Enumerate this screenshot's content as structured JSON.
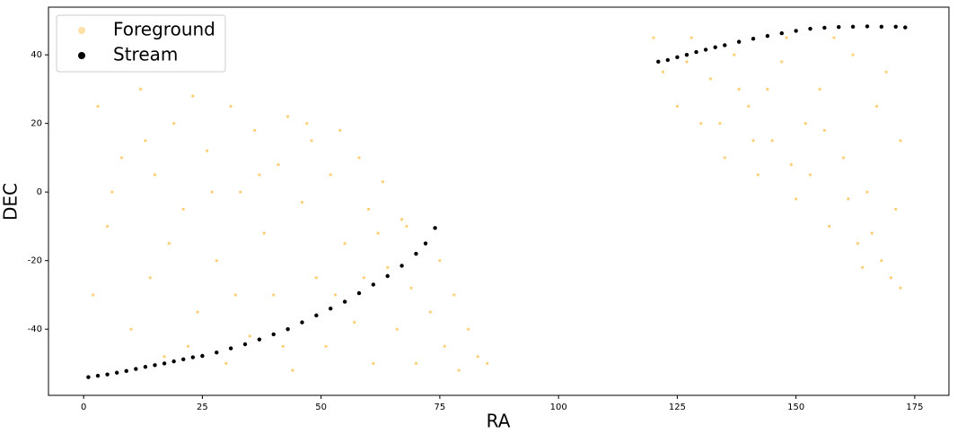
{
  "chart_data": {
    "type": "scatter",
    "x_label": "RA",
    "y_label": "DEC",
    "xlim": [
      -7.4,
      182.2
    ],
    "ylim": [
      -59.3,
      53.9
    ],
    "xticks": [
      0,
      25,
      50,
      75,
      100,
      125,
      150,
      175
    ],
    "yticks": [
      -40,
      -20,
      0,
      20,
      40
    ],
    "legend": "upper left",
    "grid": false,
    "series": [
      {
        "name": "Foreground",
        "color": "#ffa500",
        "x": [
          3,
          5,
          8,
          10,
          12,
          14,
          15,
          17,
          19,
          21,
          23,
          24,
          26,
          28,
          30,
          31,
          33,
          35,
          36,
          38,
          40,
          41,
          43,
          44,
          46,
          48,
          49,
          51,
          52,
          54,
          55,
          57,
          58,
          60,
          61,
          63,
          64,
          66,
          67,
          69,
          70,
          72,
          73,
          75,
          76,
          78,
          79,
          81,
          83,
          85,
          2,
          6,
          9,
          13,
          18,
          22,
          27,
          32,
          37,
          42,
          47,
          53,
          59,
          62,
          68,
          120,
          122,
          125,
          128,
          130,
          132,
          135,
          137,
          140,
          142,
          145,
          147,
          150,
          152,
          155,
          157,
          160,
          162,
          163,
          165,
          167,
          168,
          170,
          172,
          171,
          158,
          148,
          138,
          127,
          144,
          153,
          166,
          169,
          161,
          156,
          134,
          141,
          149,
          164,
          172
        ],
        "values": [
          25,
          -10,
          10,
          -40,
          30,
          -25,
          5,
          -48,
          20,
          -5,
          28,
          -35,
          12,
          -20,
          -50,
          25,
          0,
          -42,
          18,
          -12,
          -30,
          8,
          22,
          -52,
          -3,
          15,
          -25,
          -45,
          5,
          18,
          -15,
          -38,
          10,
          -5,
          -50,
          3,
          -22,
          -40,
          -8,
          -28,
          -50,
          -15,
          -35,
          -20,
          -45,
          -30,
          -52,
          -40,
          -48,
          -50,
          -30,
          0,
          -52,
          15,
          -15,
          -45,
          0,
          -30,
          5,
          -45,
          20,
          -30,
          -25,
          -12,
          -10,
          45,
          35,
          25,
          45,
          20,
          33,
          10,
          40,
          25,
          5,
          15,
          38,
          -2,
          20,
          30,
          -10,
          10,
          40,
          -15,
          0,
          25,
          -20,
          -25,
          15,
          -5,
          45,
          45,
          30,
          38,
          30,
          5,
          -12,
          35,
          -2,
          18,
          20,
          15,
          8,
          -22,
          -28
        ]
      },
      {
        "name": "Stream",
        "color": "#000000",
        "x": [
          1,
          3,
          5,
          7,
          9,
          11,
          13,
          15,
          17,
          19,
          21,
          23,
          25,
          28,
          31,
          34,
          37,
          40,
          43,
          46,
          49,
          52,
          55,
          58,
          61,
          64,
          67,
          70,
          72,
          74,
          121,
          123,
          125,
          127,
          129,
          131,
          133,
          135,
          138,
          141,
          144,
          147,
          150,
          153,
          156,
          159,
          162,
          165,
          168,
          171,
          173
        ],
        "values": [
          -54,
          -53.6,
          -53.2,
          -52.7,
          -52.2,
          -51.6,
          -51,
          -50.5,
          -50,
          -49.4,
          -48.8,
          -48.2,
          -47.8,
          -46.8,
          -45.6,
          -44.4,
          -43,
          -41.5,
          -40,
          -38,
          -36,
          -34,
          -32,
          -29.5,
          -27,
          -24.5,
          -21.5,
          -18,
          -15,
          -10.5,
          38,
          38.5,
          39.3,
          40,
          40.8,
          41.5,
          42.2,
          42.8,
          43.8,
          44.7,
          45.5,
          46.3,
          47,
          47.6,
          47.9,
          48.1,
          48.2,
          48.3,
          48.2,
          48.2,
          48
        ]
      }
    ]
  }
}
